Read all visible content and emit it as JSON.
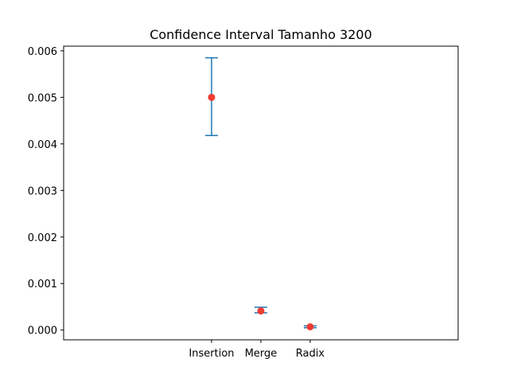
{
  "chart_data": {
    "type": "errorbar",
    "title": "Confidence Interval Tamanho 3200",
    "xlabel": "",
    "ylabel": "",
    "categories": [
      "Insertion",
      "Merge",
      "Radix"
    ],
    "series": [
      {
        "mean": [
          0.005,
          0.00041,
          7e-05
        ],
        "ci_low": [
          0.00418,
          0.00037,
          5e-05
        ],
        "ci_high": [
          0.00585,
          0.00049,
          9e-05
        ]
      }
    ],
    "xlim": [
      -3,
      5
    ],
    "ylim": [
      -0.00021,
      0.0061
    ],
    "yticks": [
      0.0,
      0.001,
      0.002,
      0.003,
      0.004,
      0.005,
      0.006
    ],
    "ytick_labels": [
      "0.000",
      "0.001",
      "0.002",
      "0.003",
      "0.004",
      "0.005",
      "0.006"
    ],
    "grid": false,
    "legend": "none",
    "colors": {
      "errorbar": "#1f77b4",
      "mean": "#f03c32"
    }
  }
}
